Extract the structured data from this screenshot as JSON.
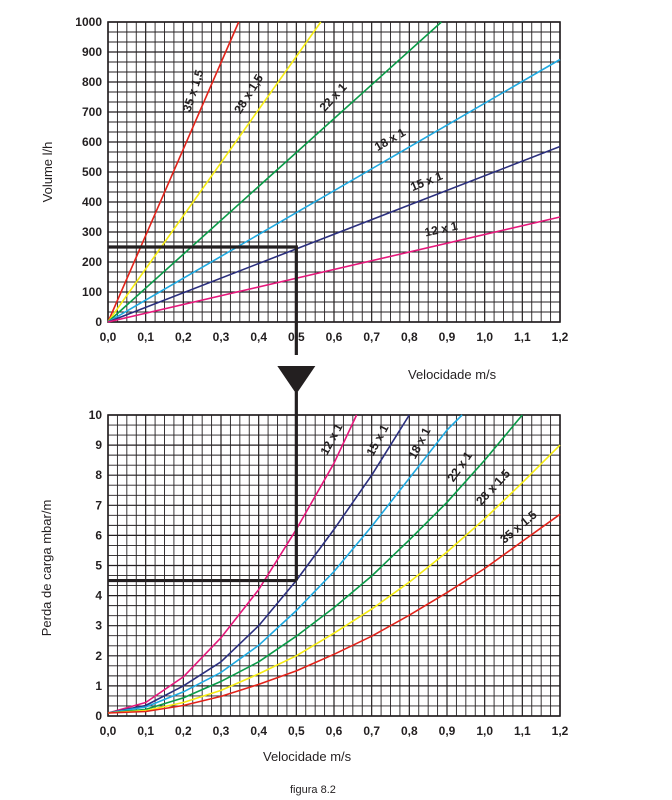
{
  "caption": "figura 8.2",
  "colors": {
    "35 x 1,5": "#e2231a",
    "28 x 1,5": "#f6ec13",
    "22 x 1": "#0a9b48",
    "18 x 1": "#1fa9e1",
    "15 x 1": "#2b2f7e",
    "12 x 1": "#e5177b",
    "ink": "#231f20"
  },
  "chart_data": [
    {
      "type": "line",
      "title": "",
      "xlabel": "Velocidade m/s",
      "ylabel": "Volume  l/h",
      "xlim": [
        0,
        1.2
      ],
      "ylim": [
        0,
        1000
      ],
      "x_ticks": [
        "0,0",
        "0,1",
        "0,2",
        "0,3",
        "0,4",
        "0,5",
        "0,6",
        "0,7",
        "0,8",
        "0,9",
        "1,0",
        "1,1",
        "1,2"
      ],
      "y_ticks": [
        "0",
        "100",
        "200",
        "300",
        "400",
        "500",
        "600",
        "700",
        "800",
        "900",
        "1000"
      ],
      "series": [
        {
          "name": "35 x 1,5",
          "label": "35 x 1,5",
          "color_key": "35 x 1,5",
          "x": [
            0,
            0.347
          ],
          "y": [
            0,
            1000
          ]
        },
        {
          "name": "28 x 1,5",
          "label": "28 x 1,5",
          "color_key": "28 x 1,5",
          "x": [
            0,
            0.565
          ],
          "y": [
            0,
            1000
          ]
        },
        {
          "name": "22 x 1",
          "label": "22 x 1",
          "color_key": "22 x 1",
          "x": [
            0,
            0.885
          ],
          "y": [
            0,
            1000
          ]
        },
        {
          "name": "18 x 1",
          "label": "18 x 1",
          "color_key": "18 x 1",
          "x": [
            0,
            1.2
          ],
          "y": [
            0,
            875
          ]
        },
        {
          "name": "15 x 1",
          "label": "15 x 1",
          "color_key": "15 x 1",
          "x": [
            0,
            1.2
          ],
          "y": [
            0,
            585
          ]
        },
        {
          "name": "12 x 1",
          "label": "12 x 1",
          "color_key": "12 x 1",
          "x": [
            0,
            1.2
          ],
          "y": [
            0,
            350
          ]
        }
      ],
      "annotation": {
        "x": 0.5,
        "y": 250
      }
    },
    {
      "type": "line",
      "title": "",
      "xlabel": "Velocidade m/s",
      "ylabel": "Perda de carga mbar/m",
      "xlim": [
        0,
        1.2
      ],
      "ylim": [
        0,
        10
      ],
      "x_ticks": [
        "0,0",
        "0,1",
        "0,2",
        "0,3",
        "0,4",
        "0,5",
        "0,6",
        "0,7",
        "0,8",
        "0,9",
        "1,0",
        "1,1",
        "1,2"
      ],
      "y_ticks": [
        "0",
        "1",
        "2",
        "3",
        "4",
        "5",
        "6",
        "7",
        "8",
        "9",
        "10"
      ],
      "series": [
        {
          "name": "12 x 1",
          "label": "12 x 1",
          "color_key": "12 x 1",
          "x": [
            0,
            0.1,
            0.2,
            0.3,
            0.4,
            0.5,
            0.6,
            0.66
          ],
          "y": [
            0.1,
            0.45,
            1.3,
            2.6,
            4.2,
            6.2,
            8.4,
            10
          ]
        },
        {
          "name": "15 x 1",
          "label": "15 x 1",
          "color_key": "15 x 1",
          "x": [
            0,
            0.1,
            0.2,
            0.3,
            0.4,
            0.5,
            0.6,
            0.7,
            0.8
          ],
          "y": [
            0.1,
            0.35,
            1.0,
            1.8,
            3.0,
            4.5,
            6.2,
            8.0,
            10
          ]
        },
        {
          "name": "18 x 1",
          "label": "18 x 1",
          "color_key": "18 x 1",
          "x": [
            0,
            0.1,
            0.2,
            0.3,
            0.4,
            0.5,
            0.6,
            0.7,
            0.8,
            0.9,
            0.94
          ],
          "y": [
            0.1,
            0.3,
            0.8,
            1.45,
            2.35,
            3.5,
            4.8,
            6.3,
            7.9,
            9.5,
            10
          ]
        },
        {
          "name": "22 x 1",
          "label": "22 x 1",
          "color_key": "22 x 1",
          "x": [
            0,
            0.1,
            0.2,
            0.3,
            0.4,
            0.5,
            0.6,
            0.7,
            0.8,
            0.9,
            1.0,
            1.1
          ],
          "y": [
            0.1,
            0.22,
            0.6,
            1.15,
            1.8,
            2.65,
            3.6,
            4.65,
            5.85,
            7.1,
            8.5,
            10
          ]
        },
        {
          "name": "28 x 1,5",
          "label": "28 x 1.5",
          "color_key": "28 x 1,5",
          "x": [
            0,
            0.1,
            0.2,
            0.3,
            0.4,
            0.5,
            0.6,
            0.7,
            0.8,
            0.9,
            1.0,
            1.1,
            1.2
          ],
          "y": [
            0.1,
            0.18,
            0.45,
            0.85,
            1.4,
            2.0,
            2.75,
            3.55,
            4.45,
            5.45,
            6.55,
            7.75,
            9.0
          ]
        },
        {
          "name": "35 x 1,5",
          "label": "35 x 1.5",
          "color_key": "35 x 1,5",
          "x": [
            0,
            0.1,
            0.2,
            0.3,
            0.4,
            0.5,
            0.6,
            0.7,
            0.8,
            0.9,
            1.0,
            1.1,
            1.2
          ],
          "y": [
            0.1,
            0.15,
            0.35,
            0.65,
            1.05,
            1.5,
            2.05,
            2.65,
            3.35,
            4.1,
            4.9,
            5.8,
            6.7
          ]
        }
      ],
      "annotation": {
        "x": 0.5,
        "y": 4.5
      }
    }
  ]
}
